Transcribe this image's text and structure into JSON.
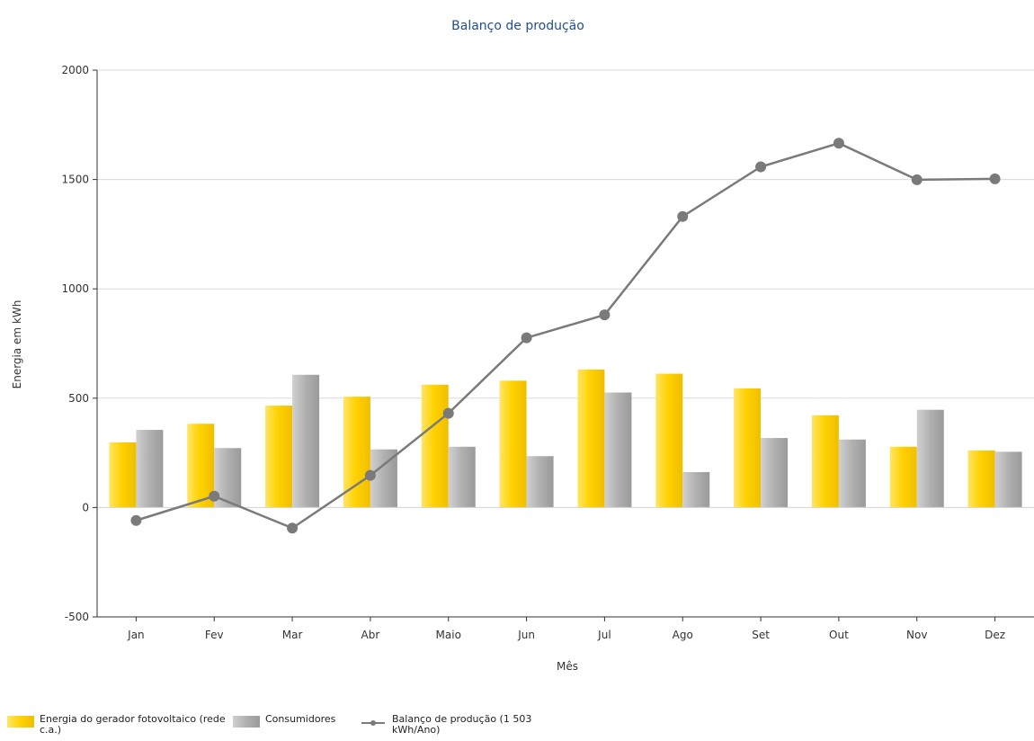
{
  "chart_data": {
    "type": "bar",
    "title": "Balanço de produção",
    "xlabel": "Mês",
    "ylabel": "Energia em kWh",
    "categories": [
      "Jan",
      "Fev",
      "Mar",
      "Abr",
      "Maio",
      "Jun",
      "Jul",
      "Ago",
      "Set",
      "Out",
      "Nov",
      "Dez"
    ],
    "ylim": [
      -500,
      2000
    ],
    "yticks": [
      -500,
      0,
      500,
      1000,
      1500,
      2000
    ],
    "grid": true,
    "legend_position": "bottom",
    "series": [
      {
        "name": "Energia do gerador fotovoltaico (rede c.a.)",
        "kind": "bar",
        "color": "#FFD200",
        "values": [
          298,
          383,
          466,
          507,
          562,
          580,
          631,
          612,
          545,
          422,
          278,
          261
        ]
      },
      {
        "name": "Consumidores",
        "kind": "bar",
        "color": "#AAAAAA",
        "values": [
          355,
          272,
          607,
          266,
          278,
          235,
          526,
          162,
          318,
          311,
          447,
          255
        ]
      },
      {
        "name": "Balanço de produção (1 503 kWh/Ano)",
        "kind": "line",
        "color": "#7A7A7A",
        "values": [
          -59,
          52,
          -94,
          147,
          431,
          776,
          881,
          1331,
          1558,
          1666,
          1499,
          1503
        ]
      }
    ]
  },
  "legend": {
    "items": [
      {
        "label": "Energia do gerador fotovoltaico (rede c.a.)"
      },
      {
        "label": "Consumidores"
      },
      {
        "label": "Balanço de produção (1 503 kWh/Ano)"
      }
    ]
  }
}
